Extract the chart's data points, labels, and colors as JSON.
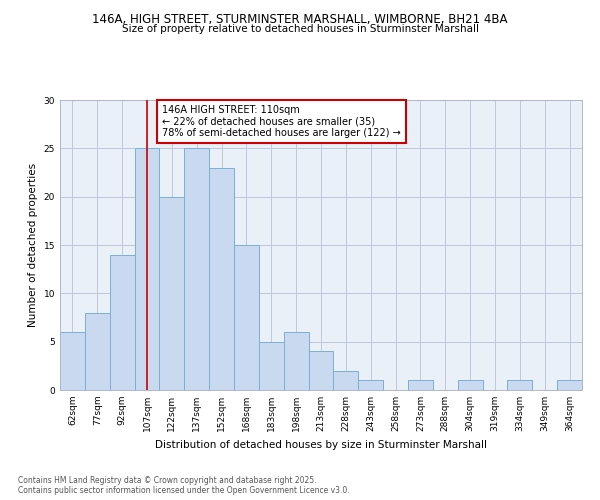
{
  "title1": "146A, HIGH STREET, STURMINSTER MARSHALL, WIMBORNE, BH21 4BA",
  "title2": "Size of property relative to detached houses in Sturminster Marshall",
  "xlabel": "Distribution of detached houses by size in Sturminster Marshall",
  "ylabel": "Number of detached properties",
  "categories": [
    "62sqm",
    "77sqm",
    "92sqm",
    "107sqm",
    "122sqm",
    "137sqm",
    "152sqm",
    "168sqm",
    "183sqm",
    "198sqm",
    "213sqm",
    "228sqm",
    "243sqm",
    "258sqm",
    "273sqm",
    "288sqm",
    "304sqm",
    "319sqm",
    "334sqm",
    "349sqm",
    "364sqm"
  ],
  "values": [
    6,
    8,
    14,
    25,
    20,
    25,
    23,
    15,
    5,
    6,
    4,
    2,
    1,
    0,
    1,
    0,
    1,
    0,
    1,
    0,
    1
  ],
  "bar_color": "#c9d9f0",
  "bar_edge_color": "#7bafd4",
  "grid_color": "#c0c8d8",
  "bg_color": "#eaf0f8",
  "annotation_line1": "146A HIGH STREET: 110sqm",
  "annotation_line2": "← 22% of detached houses are smaller (35)",
  "annotation_line3": "78% of semi-detached houses are larger (122) →",
  "annotation_box_color": "#ffffff",
  "annotation_box_edge": "#cc0000",
  "vline_color": "#cc0000",
  "vline_x": 3.5,
  "ylim": [
    0,
    30
  ],
  "yticks": [
    0,
    5,
    10,
    15,
    20,
    25,
    30
  ],
  "footer": "Contains HM Land Registry data © Crown copyright and database right 2025.\nContains public sector information licensed under the Open Government Licence v3.0.",
  "title1_fontsize": 8.5,
  "title2_fontsize": 7.5,
  "xlabel_fontsize": 7.5,
  "ylabel_fontsize": 7.5,
  "tick_fontsize": 6.5,
  "annot_fontsize": 7.0,
  "footer_fontsize": 5.5
}
